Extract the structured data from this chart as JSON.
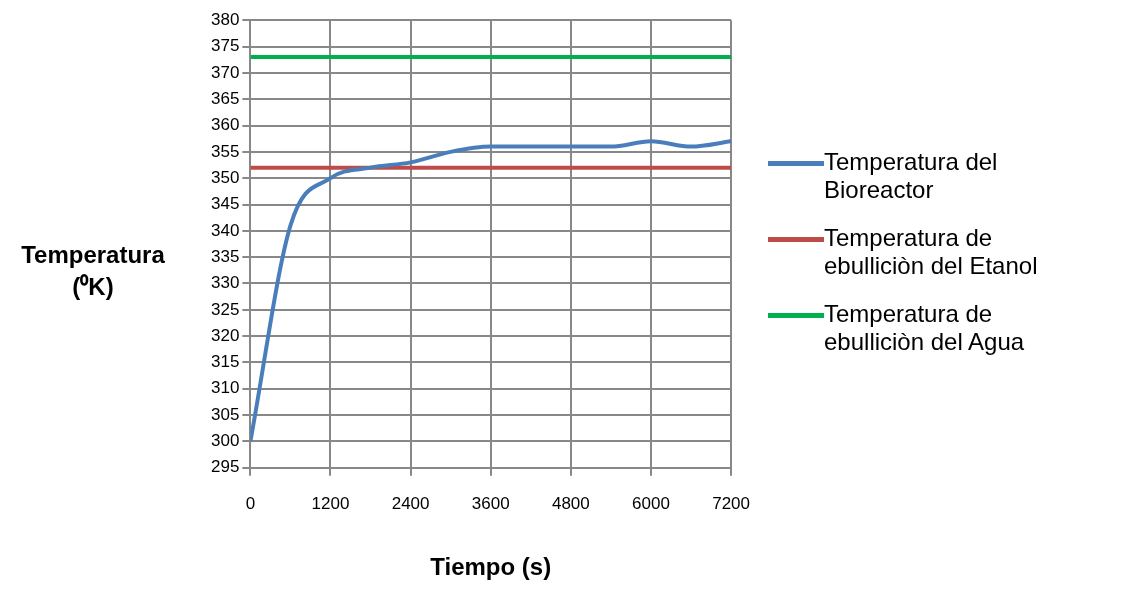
{
  "chart_data": {
    "type": "line",
    "xlabel": "Tiempo (s)",
    "ylabel": "Temperatura (⁰K)",
    "x": [
      0,
      600,
      1200,
      1800,
      2400,
      3000,
      3600,
      4200,
      4800,
      5400,
      6000,
      6600,
      7200
    ],
    "series": [
      {
        "name": "Temperatura del Bioreactor",
        "color": "#4a7ebb",
        "values": [
          300,
          341,
          350,
          352,
          353,
          355,
          356,
          356,
          356,
          356,
          357,
          356,
          357
        ]
      },
      {
        "name": "Temperatura de ebulliciòn del Etanol",
        "color": "#be4b48",
        "values": [
          352,
          352,
          352,
          352,
          352,
          352,
          352,
          352,
          352,
          352,
          352,
          352,
          352
        ]
      },
      {
        "name": "Temperatura de ebulliciòn del Agua",
        "color": "#00b050",
        "values": [
          373,
          373,
          373,
          373,
          373,
          373,
          373,
          373,
          373,
          373,
          373,
          373,
          373
        ]
      }
    ],
    "xlim": [
      0,
      7200
    ],
    "xticks": [
      0,
      1200,
      2400,
      3600,
      4800,
      6000,
      7200
    ],
    "ylim": [
      295,
      380
    ],
    "yticks": [
      295,
      300,
      305,
      310,
      315,
      320,
      325,
      330,
      335,
      340,
      345,
      350,
      355,
      360,
      365,
      370,
      375,
      380
    ],
    "grid": true,
    "legend": "right",
    "marker": "none",
    "line_style": "solid"
  }
}
